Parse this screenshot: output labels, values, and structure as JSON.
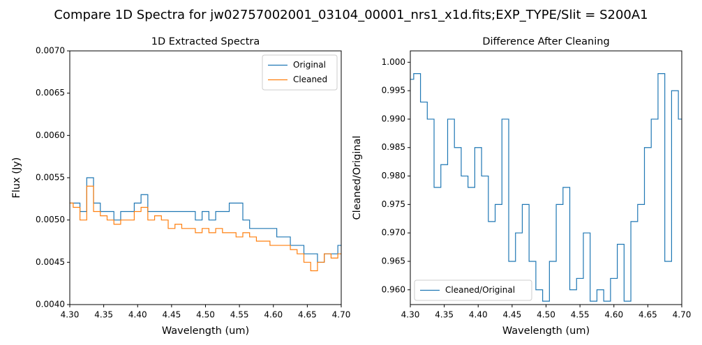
{
  "title": "Compare 1D Spectra for jw02757002001_03104_00001_nrs1_x1d.fits;EXP_TYPE/Slit = S200A1",
  "chart_data": [
    {
      "type": "line",
      "step": true,
      "title": "1D Extracted Spectra",
      "xlabel": "Wavelength (um)",
      "ylabel": "Flux (Jy)",
      "x": [
        4.3,
        4.31,
        4.32,
        4.33,
        4.34,
        4.35,
        4.36,
        4.37,
        4.38,
        4.39,
        4.4,
        4.41,
        4.42,
        4.43,
        4.44,
        4.45,
        4.46,
        4.47,
        4.48,
        4.49,
        4.5,
        4.51,
        4.52,
        4.53,
        4.54,
        4.55,
        4.56,
        4.57,
        4.58,
        4.59,
        4.6,
        4.61,
        4.62,
        4.63,
        4.64,
        4.65,
        4.66,
        4.67,
        4.68,
        4.69,
        4.7
      ],
      "series": [
        {
          "name": "Original",
          "color": "#1f77b4",
          "values": [
            0.0052,
            0.0052,
            0.0051,
            0.0055,
            0.0052,
            0.0051,
            0.0051,
            0.005,
            0.0051,
            0.0051,
            0.0052,
            0.0053,
            0.0051,
            0.0051,
            0.0051,
            0.0051,
            0.0051,
            0.0051,
            0.0051,
            0.005,
            0.0051,
            0.005,
            0.0051,
            0.0051,
            0.0052,
            0.0052,
            0.005,
            0.0049,
            0.0049,
            0.0049,
            0.0049,
            0.0048,
            0.0048,
            0.0047,
            0.0047,
            0.0046,
            0.0046,
            0.0045,
            0.0046,
            0.0046,
            0.0047
          ]
        },
        {
          "name": "Cleaned",
          "color": "#ff7f0e",
          "values": [
            0.0052,
            0.00515,
            0.005,
            0.0054,
            0.0051,
            0.00505,
            0.005,
            0.00495,
            0.005,
            0.005,
            0.0051,
            0.00515,
            0.005,
            0.00505,
            0.005,
            0.0049,
            0.00495,
            0.0049,
            0.0049,
            0.00485,
            0.0049,
            0.00485,
            0.0049,
            0.00485,
            0.00485,
            0.0048,
            0.00485,
            0.0048,
            0.00475,
            0.00475,
            0.0047,
            0.0047,
            0.0047,
            0.00465,
            0.0046,
            0.0045,
            0.0044,
            0.0045,
            0.0046,
            0.00455,
            0.0046
          ]
        }
      ],
      "xlim": [
        4.3,
        4.7
      ],
      "xticks": [
        {
          "value": 4.3,
          "label": "4.30"
        },
        {
          "value": 4.35,
          "label": "4.35"
        },
        {
          "value": 4.4,
          "label": "4.40"
        },
        {
          "value": 4.45,
          "label": "4.45"
        },
        {
          "value": 4.5,
          "label": "4.50"
        },
        {
          "value": 4.55,
          "label": "4.55"
        },
        {
          "value": 4.6,
          "label": "4.60"
        },
        {
          "value": 4.65,
          "label": "4.65"
        },
        {
          "value": 4.7,
          "label": "4.70"
        }
      ],
      "ylim": [
        0.004,
        0.007
      ],
      "yticks": [
        {
          "value": 0.004,
          "label": "0.0040"
        },
        {
          "value": 0.0045,
          "label": "0.0045"
        },
        {
          "value": 0.005,
          "label": "0.0050"
        },
        {
          "value": 0.0055,
          "label": "0.0055"
        },
        {
          "value": 0.006,
          "label": "0.0060"
        },
        {
          "value": 0.0065,
          "label": "0.0065"
        },
        {
          "value": 0.007,
          "label": "0.0070"
        }
      ],
      "legend": "upper right"
    },
    {
      "type": "line",
      "step": true,
      "title": "Difference After Cleaning",
      "xlabel": "Wavelength (um)",
      "ylabel": "Cleaned/Original",
      "x": [
        4.3,
        4.31,
        4.32,
        4.33,
        4.34,
        4.35,
        4.36,
        4.37,
        4.38,
        4.39,
        4.4,
        4.41,
        4.42,
        4.43,
        4.44,
        4.45,
        4.46,
        4.47,
        4.48,
        4.49,
        4.5,
        4.51,
        4.52,
        4.53,
        4.54,
        4.55,
        4.56,
        4.57,
        4.58,
        4.59,
        4.6,
        4.61,
        4.62,
        4.63,
        4.64,
        4.65,
        4.66,
        4.67,
        4.68,
        4.69,
        4.7
      ],
      "series": [
        {
          "name": "Cleaned/Original",
          "color": "#1f77b4",
          "values": [
            0.997,
            0.998,
            0.993,
            0.99,
            0.978,
            0.982,
            0.99,
            0.985,
            0.98,
            0.978,
            0.985,
            0.98,
            0.972,
            0.975,
            0.99,
            0.965,
            0.97,
            0.975,
            0.965,
            0.96,
            0.958,
            0.965,
            0.975,
            0.978,
            0.96,
            0.962,
            0.97,
            0.958,
            0.96,
            0.958,
            0.962,
            0.968,
            0.958,
            0.972,
            0.975,
            0.985,
            0.99,
            0.998,
            0.965,
            0.995,
            0.99
          ]
        }
      ],
      "xlim": [
        4.3,
        4.7
      ],
      "xticks": [
        {
          "value": 4.3,
          "label": "4.30"
        },
        {
          "value": 4.35,
          "label": "4.35"
        },
        {
          "value": 4.4,
          "label": "4.40"
        },
        {
          "value": 4.45,
          "label": "4.45"
        },
        {
          "value": 4.5,
          "label": "4.50"
        },
        {
          "value": 4.55,
          "label": "4.55"
        },
        {
          "value": 4.6,
          "label": "4.60"
        },
        {
          "value": 4.65,
          "label": "4.65"
        },
        {
          "value": 4.7,
          "label": "4.70"
        }
      ],
      "ylim": [
        0.9574,
        1.002
      ],
      "yticks": [
        {
          "value": 0.96,
          "label": "0.960"
        },
        {
          "value": 0.965,
          "label": "0.965"
        },
        {
          "value": 0.97,
          "label": "0.970"
        },
        {
          "value": 0.975,
          "label": "0.975"
        },
        {
          "value": 0.98,
          "label": "0.980"
        },
        {
          "value": 0.985,
          "label": "0.985"
        },
        {
          "value": 0.99,
          "label": "0.990"
        },
        {
          "value": 0.995,
          "label": "0.995"
        },
        {
          "value": 1.0,
          "label": "1.000"
        }
      ],
      "legend": "lower left"
    }
  ]
}
